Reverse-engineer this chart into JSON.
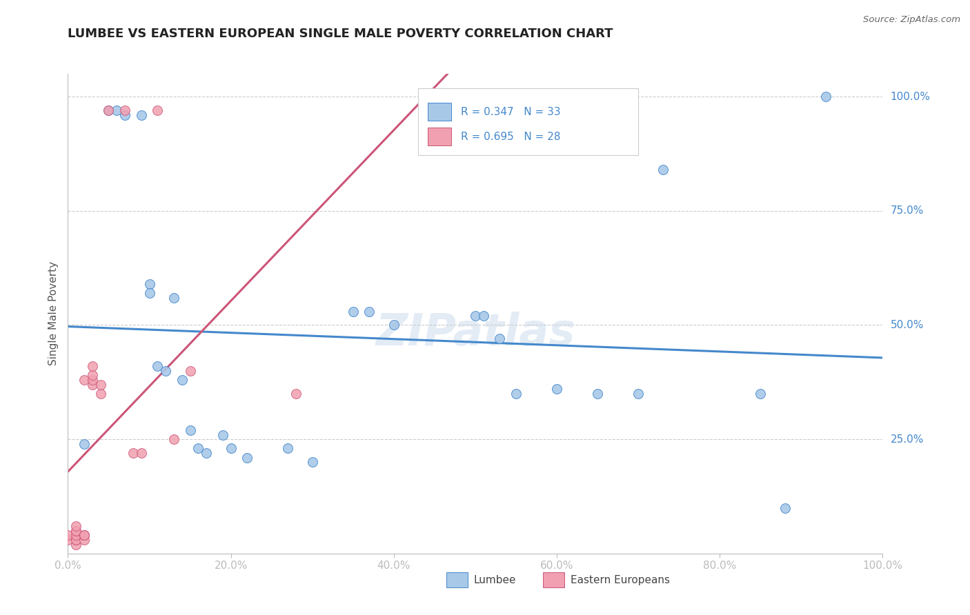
{
  "title": "LUMBEE VS EASTERN EUROPEAN SINGLE MALE POVERTY CORRELATION CHART",
  "source": "Source: ZipAtlas.com",
  "ylabel": "Single Male Poverty",
  "watermark": "ZIPatlas",
  "legend_lumbee_R": "R = 0.347",
  "legend_lumbee_N": "N = 33",
  "legend_eastern_R": "R = 0.695",
  "legend_eastern_N": "N = 28",
  "lumbee_color": "#A8C8E8",
  "eastern_color": "#F0A0B0",
  "lumbee_line_color": "#4488CC",
  "eastern_line_color": "#CC5577",
  "lumbee_x": [
    0.02,
    0.05,
    0.06,
    0.07,
    0.09,
    0.1,
    0.1,
    0.11,
    0.12,
    0.13,
    0.14,
    0.15,
    0.16,
    0.17,
    0.19,
    0.2,
    0.22,
    0.27,
    0.3,
    0.35,
    0.37,
    0.4,
    0.5,
    0.51,
    0.53,
    0.55,
    0.6,
    0.65,
    0.7,
    0.73,
    0.85,
    0.88,
    0.93
  ],
  "lumbee_y": [
    0.24,
    0.97,
    0.97,
    0.96,
    0.96,
    0.59,
    0.57,
    0.41,
    0.4,
    0.56,
    0.38,
    0.27,
    0.23,
    0.22,
    0.26,
    0.23,
    0.21,
    0.23,
    0.2,
    0.53,
    0.53,
    0.5,
    0.52,
    0.52,
    0.47,
    0.35,
    0.36,
    0.35,
    0.35,
    0.84,
    0.35,
    0.1,
    1.0
  ],
  "eastern_x": [
    0.0,
    0.0,
    0.01,
    0.01,
    0.01,
    0.01,
    0.01,
    0.01,
    0.01,
    0.02,
    0.02,
    0.02,
    0.02,
    0.02,
    0.03,
    0.03,
    0.03,
    0.03,
    0.04,
    0.04,
    0.05,
    0.07,
    0.08,
    0.09,
    0.11,
    0.13,
    0.15,
    0.28
  ],
  "eastern_y": [
    0.03,
    0.04,
    0.02,
    0.03,
    0.03,
    0.04,
    0.05,
    0.05,
    0.06,
    0.03,
    0.04,
    0.04,
    0.04,
    0.38,
    0.37,
    0.38,
    0.39,
    0.41,
    0.35,
    0.37,
    0.97,
    0.97,
    0.22,
    0.22,
    0.97,
    0.25,
    0.4,
    0.35
  ],
  "xlim": [
    0.0,
    1.0
  ],
  "ylim": [
    0.0,
    1.05
  ],
  "yticks": [
    0.25,
    0.5,
    0.75,
    1.0
  ],
  "ytick_labels": [
    "25.0%",
    "50.0%",
    "75.0%",
    "100.0%"
  ],
  "xticks": [
    0.0,
    0.2,
    0.4,
    0.6,
    0.8,
    1.0
  ],
  "xtick_labels": [
    "0.0%",
    "20.0%",
    "40.0%",
    "60.0%",
    "80.0%",
    "100.0%"
  ],
  "grid_color": "#CCCCCC",
  "bg_color": "#FFFFFF",
  "title_color": "#222222",
  "axis_label_color": "#4488CC",
  "right_label_color": "#4488CC"
}
